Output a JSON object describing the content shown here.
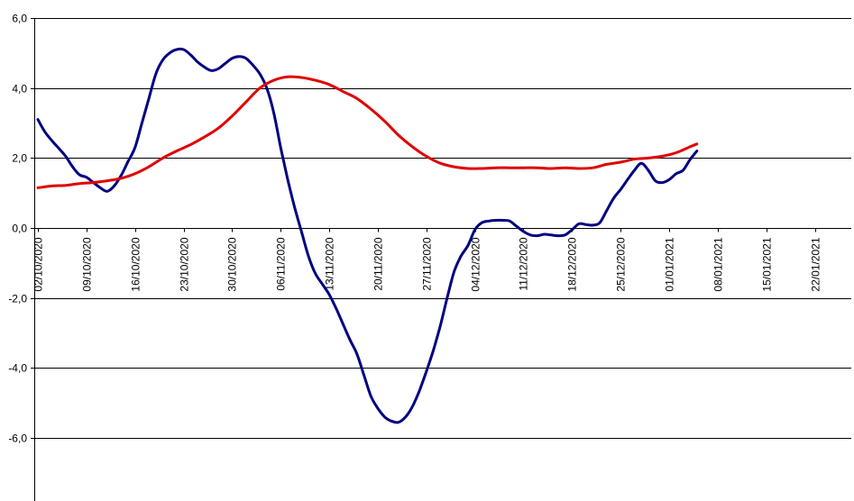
{
  "chart_data": {
    "type": "line",
    "title": "",
    "xlabel": "",
    "ylabel": "",
    "ylim": [
      -7.8,
      6.0
    ],
    "y_ticks": [
      "6,0",
      "4,0",
      "2,0",
      "0,0",
      "-2,0",
      "-4,0",
      "-6,0"
    ],
    "y_tick_values": [
      6,
      4,
      2,
      0,
      -2,
      -4,
      -6
    ],
    "x_tick_labels": [
      "02/10/2020",
      "09/10/2020",
      "16/10/2020",
      "23/10/2020",
      "30/10/2020",
      "06/11/2020",
      "13/11/2020",
      "20/11/2020",
      "27/11/2020",
      "04/12/2020",
      "11/12/2020",
      "18/12/2020",
      "25/12/2020",
      "01/01/2021",
      "08/01/2021",
      "15/01/2021",
      "22/01/2021"
    ],
    "x_tick_values": [
      "2020-10-02",
      "2020-10-09",
      "2020-10-16",
      "2020-10-23",
      "2020-10-30",
      "2020-11-06",
      "2020-11-13",
      "2020-11-20",
      "2020-11-27",
      "2020-12-04",
      "2020-12-11",
      "2020-12-18",
      "2020-12-25",
      "2021-01-01",
      "2021-01-08",
      "2021-01-15",
      "2021-01-22"
    ],
    "x_range": [
      "2020-10-02",
      "2021-01-27"
    ],
    "grid": true,
    "legend": "none",
    "series": [
      {
        "color": "#000080",
        "points": [
          [
            "2020-10-02",
            3.1
          ],
          [
            "2020-10-03",
            2.75
          ],
          [
            "2020-10-04",
            2.5
          ],
          [
            "2020-10-05",
            2.28
          ],
          [
            "2020-10-06",
            2.05
          ],
          [
            "2020-10-07",
            1.75
          ],
          [
            "2020-10-08",
            1.52
          ],
          [
            "2020-10-09",
            1.45
          ],
          [
            "2020-10-10",
            1.3
          ],
          [
            "2020-10-11",
            1.15
          ],
          [
            "2020-10-12",
            1.05
          ],
          [
            "2020-10-13",
            1.2
          ],
          [
            "2020-10-14",
            1.5
          ],
          [
            "2020-10-15",
            1.9
          ],
          [
            "2020-10-16",
            2.3
          ],
          [
            "2020-10-17",
            3.0
          ],
          [
            "2020-10-18",
            3.7
          ],
          [
            "2020-10-19",
            4.4
          ],
          [
            "2020-10-20",
            4.8
          ],
          [
            "2020-10-21",
            5.0
          ],
          [
            "2020-10-22",
            5.1
          ],
          [
            "2020-10-23",
            5.1
          ],
          [
            "2020-10-24",
            4.95
          ],
          [
            "2020-10-25",
            4.75
          ],
          [
            "2020-10-26",
            4.6
          ],
          [
            "2020-10-27",
            4.5
          ],
          [
            "2020-10-28",
            4.55
          ],
          [
            "2020-10-29",
            4.7
          ],
          [
            "2020-10-30",
            4.85
          ],
          [
            "2020-10-31",
            4.9
          ],
          [
            "2020-11-01",
            4.85
          ],
          [
            "2020-11-02",
            4.65
          ],
          [
            "2020-11-03",
            4.4
          ],
          [
            "2020-11-04",
            4.0
          ],
          [
            "2020-11-05",
            3.3
          ],
          [
            "2020-11-06",
            2.3
          ],
          [
            "2020-11-07",
            1.4
          ],
          [
            "2020-11-08",
            0.6
          ],
          [
            "2020-11-09",
            -0.1
          ],
          [
            "2020-11-10",
            -0.8
          ],
          [
            "2020-11-11",
            -1.3
          ],
          [
            "2020-11-12",
            -1.6
          ],
          [
            "2020-11-13",
            -1.9
          ],
          [
            "2020-11-14",
            -2.3
          ],
          [
            "2020-11-15",
            -2.75
          ],
          [
            "2020-11-16",
            -3.2
          ],
          [
            "2020-11-17",
            -3.6
          ],
          [
            "2020-11-18",
            -4.2
          ],
          [
            "2020-11-19",
            -4.8
          ],
          [
            "2020-11-20",
            -5.15
          ],
          [
            "2020-11-21",
            -5.4
          ],
          [
            "2020-11-22",
            -5.52
          ],
          [
            "2020-11-23",
            -5.55
          ],
          [
            "2020-11-24",
            -5.4
          ],
          [
            "2020-11-25",
            -5.1
          ],
          [
            "2020-11-26",
            -4.65
          ],
          [
            "2020-11-27",
            -4.1
          ],
          [
            "2020-11-28",
            -3.5
          ],
          [
            "2020-11-29",
            -2.8
          ],
          [
            "2020-11-30",
            -2.0
          ],
          [
            "2020-12-01",
            -1.25
          ],
          [
            "2020-12-02",
            -0.8
          ],
          [
            "2020-12-03",
            -0.5
          ],
          [
            "2020-12-04",
            -0.05
          ],
          [
            "2020-12-05",
            0.15
          ],
          [
            "2020-12-06",
            0.2
          ],
          [
            "2020-12-07",
            0.22
          ],
          [
            "2020-12-08",
            0.22
          ],
          [
            "2020-12-09",
            0.2
          ],
          [
            "2020-12-10",
            0.05
          ],
          [
            "2020-12-11",
            -0.1
          ],
          [
            "2020-12-12",
            -0.2
          ],
          [
            "2020-12-13",
            -0.22
          ],
          [
            "2020-12-14",
            -0.18
          ],
          [
            "2020-12-15",
            -0.2
          ],
          [
            "2020-12-16",
            -0.22
          ],
          [
            "2020-12-17",
            -0.2
          ],
          [
            "2020-12-18",
            -0.05
          ],
          [
            "2020-12-19",
            0.12
          ],
          [
            "2020-12-20",
            0.1
          ],
          [
            "2020-12-21",
            0.08
          ],
          [
            "2020-12-22",
            0.15
          ],
          [
            "2020-12-23",
            0.5
          ],
          [
            "2020-12-24",
            0.85
          ],
          [
            "2020-12-25",
            1.1
          ],
          [
            "2020-12-26",
            1.38
          ],
          [
            "2020-12-27",
            1.65
          ],
          [
            "2020-12-28",
            1.85
          ],
          [
            "2020-12-29",
            1.65
          ],
          [
            "2020-12-30",
            1.35
          ],
          [
            "2020-12-31",
            1.3
          ],
          [
            "2021-01-01",
            1.38
          ],
          [
            "2021-01-02",
            1.55
          ],
          [
            "2021-01-03",
            1.65
          ],
          [
            "2021-01-04",
            1.95
          ],
          [
            "2021-01-05",
            2.2
          ]
        ]
      },
      {
        "color": "#e00000",
        "points": [
          [
            "2020-10-02",
            1.15
          ],
          [
            "2020-10-04",
            1.2
          ],
          [
            "2020-10-06",
            1.22
          ],
          [
            "2020-10-08",
            1.27
          ],
          [
            "2020-10-10",
            1.3
          ],
          [
            "2020-10-12",
            1.35
          ],
          [
            "2020-10-14",
            1.42
          ],
          [
            "2020-10-16",
            1.55
          ],
          [
            "2020-10-18",
            1.75
          ],
          [
            "2020-10-20",
            2.0
          ],
          [
            "2020-10-22",
            2.2
          ],
          [
            "2020-10-24",
            2.38
          ],
          [
            "2020-10-26",
            2.6
          ],
          [
            "2020-10-28",
            2.85
          ],
          [
            "2020-10-30",
            3.2
          ],
          [
            "2020-11-01",
            3.6
          ],
          [
            "2020-11-03",
            4.0
          ],
          [
            "2020-11-05",
            4.22
          ],
          [
            "2020-11-07",
            4.32
          ],
          [
            "2020-11-09",
            4.3
          ],
          [
            "2020-11-11",
            4.22
          ],
          [
            "2020-11-13",
            4.1
          ],
          [
            "2020-11-15",
            3.9
          ],
          [
            "2020-11-17",
            3.7
          ],
          [
            "2020-11-19",
            3.4
          ],
          [
            "2020-11-21",
            3.05
          ],
          [
            "2020-11-23",
            2.65
          ],
          [
            "2020-11-25",
            2.32
          ],
          [
            "2020-11-27",
            2.05
          ],
          [
            "2020-11-29",
            1.85
          ],
          [
            "2020-12-01",
            1.75
          ],
          [
            "2020-12-03",
            1.7
          ],
          [
            "2020-12-05",
            1.7
          ],
          [
            "2020-12-07",
            1.72
          ],
          [
            "2020-12-09",
            1.72
          ],
          [
            "2020-12-11",
            1.72
          ],
          [
            "2020-12-13",
            1.72
          ],
          [
            "2020-12-15",
            1.7
          ],
          [
            "2020-12-17",
            1.72
          ],
          [
            "2020-12-19",
            1.7
          ],
          [
            "2020-12-21",
            1.72
          ],
          [
            "2020-12-23",
            1.82
          ],
          [
            "2020-12-25",
            1.88
          ],
          [
            "2020-12-27",
            1.97
          ],
          [
            "2020-12-29",
            2.0
          ],
          [
            "2020-12-31",
            2.05
          ],
          [
            "2021-01-02",
            2.15
          ],
          [
            "2021-01-04",
            2.32
          ],
          [
            "2021-01-05",
            2.4
          ]
        ]
      }
    ]
  }
}
